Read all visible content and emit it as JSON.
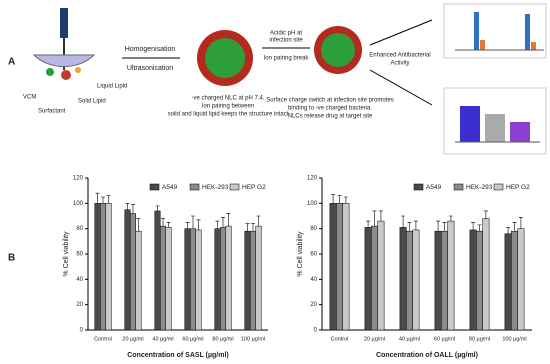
{
  "labels": {
    "a": "A",
    "b": "B"
  },
  "diagram": {
    "vcm": "VCM",
    "surfactant": "Surfactant",
    "solid_lipid": "Solid Lipid",
    "liquid_lipid": "Liquid Lipid",
    "step1a": "Homogenisation",
    "step1b": "Ultrasonication",
    "nlc1": "-ve charged NLC at pH 7.4.",
    "nlc2": "Ion pairing between",
    "nlc3": "solid and liquid lipid keeps the structure intact",
    "acid1": "Acidic pH at",
    "acid2": "infection site",
    "acid3": "Ion pairing break",
    "switch1": "Surface charge switch at infection site promotes",
    "switch2": "binding to -ve charged bacteria.",
    "switch3": "NLCs release drug at target site",
    "enh1": "Enhanced Antibacterial",
    "enh2": "Activity"
  },
  "chart_data": [
    {
      "type": "bar",
      "ylabel": "% Cell viability",
      "xlabel": "Concentration of SASL (µg/ml)",
      "categories": [
        "Control",
        "20 µg/ml",
        "40 µg/ml",
        "60 µg/ml",
        "80 µg/ml",
        "100 µg/ml"
      ],
      "series": [
        {
          "name": "A549",
          "color": "#4a4a4a",
          "values": [
            100,
            95,
            94,
            80,
            80,
            78
          ],
          "errors": [
            8,
            5,
            4,
            5,
            6,
            6
          ]
        },
        {
          "name": "HEK-293",
          "color": "#8c8c8c",
          "values": [
            100,
            92,
            82,
            80,
            81,
            78
          ],
          "errors": [
            5,
            7,
            6,
            10,
            8,
            6
          ]
        },
        {
          "name": "HEP G2",
          "color": "#c9c9c9",
          "values": [
            100,
            78,
            81,
            79,
            82,
            82
          ],
          "errors": [
            6,
            10,
            4,
            8,
            10,
            8
          ]
        }
      ],
      "ylim": [
        0,
        120
      ],
      "yticks": [
        0,
        20,
        40,
        60,
        80,
        100,
        120
      ]
    },
    {
      "type": "bar",
      "ylabel": "% Cell viability",
      "xlabel": "Concentration of OALL (µg/ml)",
      "categories": [
        "Control",
        "20 µg/ml",
        "40 µg/ml",
        "60 µg/ml",
        "80 µg/ml",
        "100 µg/ml"
      ],
      "series": [
        {
          "name": "A549",
          "color": "#4a4a4a",
          "values": [
            100,
            81,
            81,
            78,
            79,
            76
          ],
          "errors": [
            7,
            5,
            9,
            8,
            6,
            5
          ]
        },
        {
          "name": "HEK-293",
          "color": "#8c8c8c",
          "values": [
            100,
            82,
            78,
            78,
            78,
            78
          ],
          "errors": [
            6,
            12,
            7,
            7,
            5,
            7
          ]
        },
        {
          "name": "HEP G2",
          "color": "#c9c9c9",
          "values": [
            100,
            86,
            79,
            86,
            88,
            80
          ],
          "errors": [
            5,
            8,
            7,
            4,
            6,
            9
          ]
        }
      ],
      "ylim": [
        0,
        120
      ],
      "yticks": [
        0,
        20,
        40,
        60,
        80,
        100,
        120
      ]
    }
  ]
}
